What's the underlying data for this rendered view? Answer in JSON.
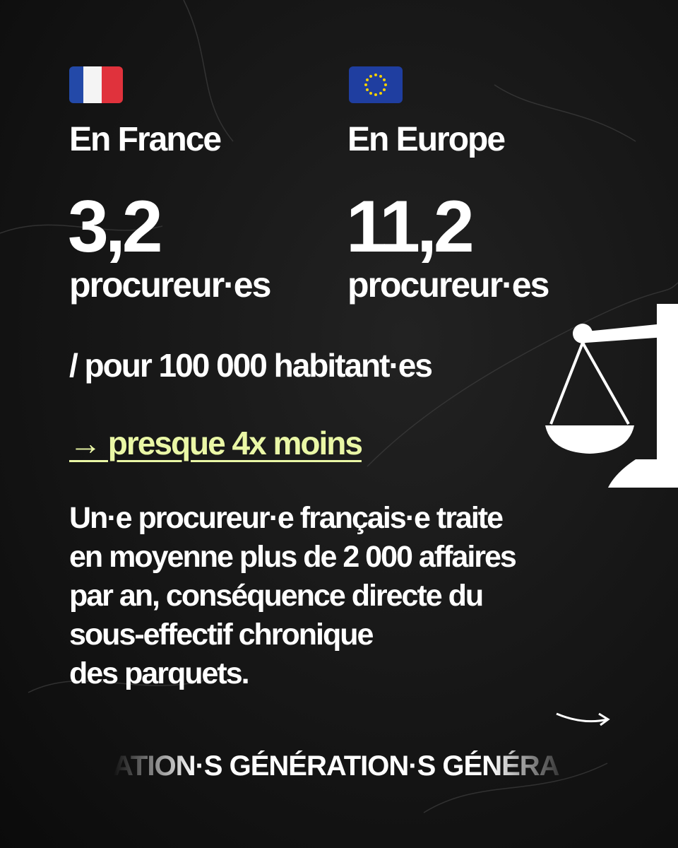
{
  "columns": [
    {
      "label": "En France",
      "value": "3,2",
      "unit": "procureur·es"
    },
    {
      "label": "En Europe",
      "value": "11,2",
      "unit": "procureur·es"
    }
  ],
  "per": "/ pour 100 000 habitant·es",
  "highlight": "→ presque 4x moins",
  "body": [
    "Un·e procureur·e français·e traite",
    "en moyenne plus de 2 000 affaires",
    "par an, conséquence directe du",
    "sous-effectif chronique",
    "des parquets."
  ],
  "footer": "ATION·S GÉNÉRATION·S GÉNÉRA"
}
